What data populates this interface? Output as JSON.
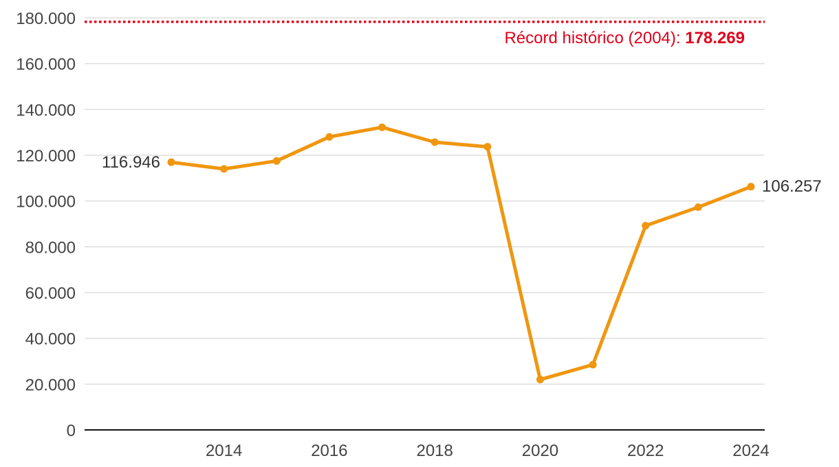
{
  "chart_data": {
    "type": "line",
    "x": [
      2013,
      2014,
      2015,
      2016,
      2017,
      2018,
      2019,
      2020,
      2021,
      2022,
      2023,
      2024
    ],
    "series": [
      {
        "values": [
          116946,
          114000,
          117500,
          128000,
          132200,
          125700,
          123700,
          22000,
          28500,
          89200,
          97300,
          106257
        ],
        "color": "#F0960F"
      }
    ],
    "ylim": [
      0,
      180000
    ],
    "yticks": [
      0,
      20000,
      40000,
      60000,
      80000,
      100000,
      120000,
      140000,
      160000,
      180000
    ],
    "ytick_labels": [
      "0",
      "20.000",
      "40.000",
      "60.000",
      "80.000",
      "100.000",
      "120.000",
      "140.000",
      "160.000",
      "180.000"
    ],
    "xticks": [
      2014,
      2016,
      2018,
      2020,
      2022,
      2024
    ],
    "xtick_labels": [
      "2014",
      "2016",
      "2018",
      "2020",
      "2022",
      "2024"
    ],
    "grid": true,
    "start_label": "116.946",
    "end_label": "106.257",
    "reference_line": {
      "value": 178269,
      "label_prefix": "Récord histórico (2004): ",
      "label_value": "178.269",
      "color": "#E0001B"
    }
  }
}
